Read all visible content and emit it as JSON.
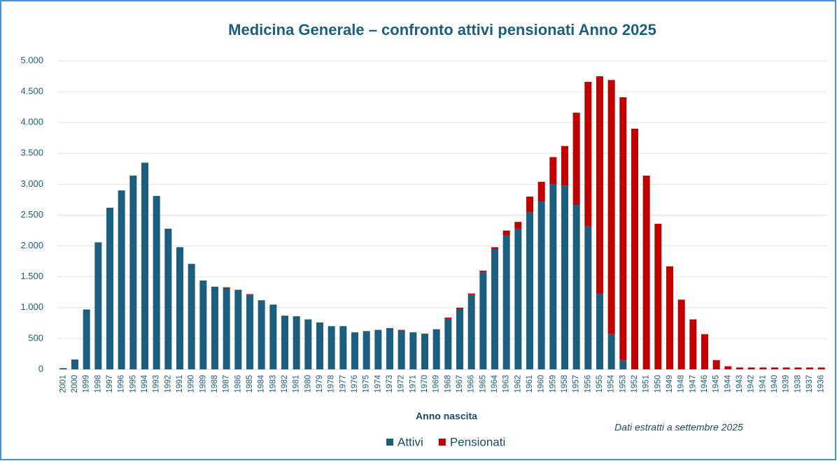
{
  "chart_data": {
    "type": "stacked_bar",
    "title": "Medicina Generale – confronto attivi pensionati Anno 2025",
    "x_label": "Anno nascita",
    "annotation": "Dati estratti a settembre 2025",
    "categories": [
      "2001",
      "2000",
      "1999",
      "1998",
      "1997",
      "1996",
      "1995",
      "1994",
      "1993",
      "1992",
      "1991",
      "1990",
      "1989",
      "1988",
      "1987",
      "1986",
      "1985",
      "1984",
      "1983",
      "1982",
      "1981",
      "1980",
      "1979",
      "1978",
      "1977",
      "1976",
      "1975",
      "1974",
      "1973",
      "1972",
      "1971",
      "1970",
      "1969",
      "1968",
      "1967",
      "1966",
      "1965",
      "1964",
      "1963",
      "1962",
      "1961",
      "1960",
      "1959",
      "1958",
      "1957",
      "1956",
      "1955",
      "1954",
      "1953",
      "1952",
      "1951",
      "1950",
      "1949",
      "1948",
      "1947",
      "1946",
      "1945",
      "1944",
      "1943",
      "1942",
      "1941",
      "1940",
      "1939",
      "1938",
      "1937",
      "1936"
    ],
    "series": [
      {
        "name": "Attivi",
        "color": "#1b5e7e",
        "values": [
          20,
          160,
          970,
          2060,
          2620,
          2900,
          3140,
          3350,
          2810,
          2280,
          1980,
          1710,
          1440,
          1340,
          1310,
          1290,
          1210,
          1120,
          1050,
          870,
          860,
          810,
          750,
          700,
          700,
          600,
          610,
          640,
          660,
          630,
          600,
          570,
          640,
          820,
          980,
          1210,
          1580,
          1950,
          2170,
          2280,
          2550,
          2720,
          3000,
          2980,
          2670,
          2320,
          1230,
          570,
          150,
          0,
          0,
          0,
          0,
          0,
          0,
          0,
          0,
          0,
          0,
          0,
          0,
          0,
          0,
          0,
          0,
          0
        ]
      },
      {
        "name": "Pensionati",
        "color": "#c00000",
        "values": [
          0,
          0,
          0,
          0,
          0,
          0,
          0,
          0,
          0,
          0,
          0,
          0,
          0,
          0,
          20,
          0,
          10,
          0,
          0,
          0,
          0,
          0,
          10,
          0,
          0,
          0,
          10,
          0,
          10,
          10,
          0,
          10,
          10,
          20,
          20,
          20,
          20,
          30,
          80,
          110,
          250,
          320,
          440,
          640,
          1490,
          2340,
          3520,
          4120,
          4260,
          3900,
          3140,
          2360,
          1670,
          1130,
          810,
          570,
          150,
          50,
          30,
          30,
          30,
          30,
          30,
          30,
          30,
          30
        ]
      }
    ],
    "ylim": [
      0,
      5000
    ],
    "yticks": [
      0,
      500,
      {
        "value": 1000,
        "label": "1.000"
      },
      {
        "value": 1500,
        "label": "1.500"
      },
      {
        "value": 2000,
        "label": "2.000"
      },
      {
        "value": 2500,
        "label": "2.500"
      },
      {
        "value": 3000,
        "label": "3.000"
      },
      {
        "value": 3500,
        "label": "3.500"
      },
      {
        "value": 4000,
        "label": "4.000"
      },
      {
        "value": 4500,
        "label": "4.500"
      },
      {
        "value": 5000,
        "label": "5.000"
      }
    ],
    "grid": true,
    "legend": "bottom"
  }
}
